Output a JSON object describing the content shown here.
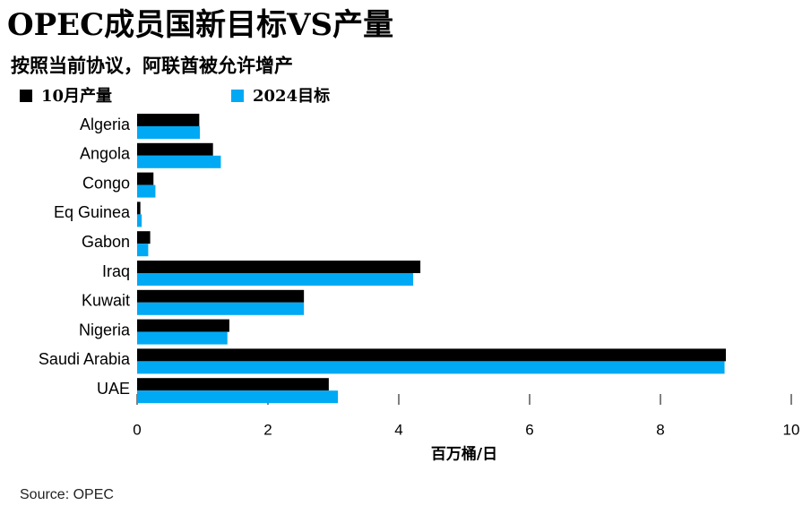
{
  "chart_data": {
    "type": "hbar",
    "title": "OPEC成员国新目标VS产量",
    "subtitle": "按照当前协议，阿联酋被允许增产",
    "categories": [
      "Algeria",
      "Angola",
      "Congo",
      "Eq Guinea",
      "Gabon",
      "Iraq",
      "Kuwait",
      "Nigeria",
      "Saudi Arabia",
      "UAE"
    ],
    "series": [
      {
        "name": "10月产量",
        "color": "#000000",
        "values": [
          0.95,
          1.16,
          0.25,
          0.05,
          0.2,
          4.33,
          2.55,
          1.41,
          9.0,
          2.93
        ]
      },
      {
        "name": "2024目标",
        "color": "#00a9f4",
        "values": [
          0.96,
          1.28,
          0.28,
          0.07,
          0.17,
          4.22,
          2.55,
          1.38,
          8.98,
          3.07
        ]
      }
    ],
    "xlim": [
      0,
      10
    ],
    "xticks": [
      0,
      2,
      4,
      6,
      8,
      10
    ],
    "xlabel": "百万桶/日",
    "source": "Source: OPEC"
  }
}
